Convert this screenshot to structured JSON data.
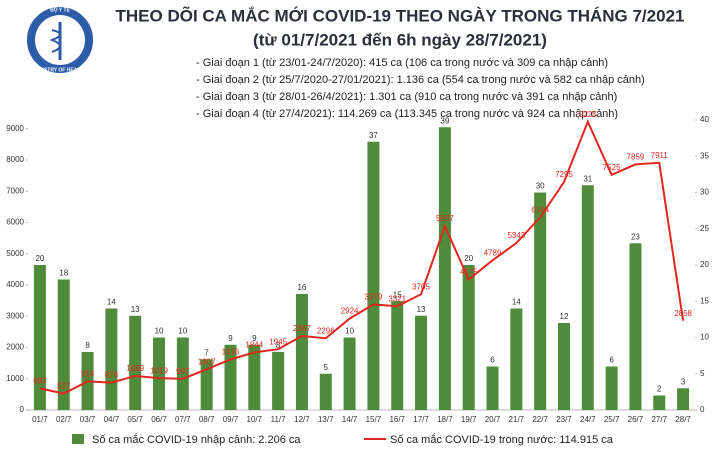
{
  "logo": {
    "top": "BỘ Y TẾ",
    "bottom": "MINISTRY OF HEALTH"
  },
  "chart_data": {
    "type": "combo",
    "title": "THEO DÕI CA MẮC MỚI COVID-19 THEO NGÀY TRONG THÁNG 7/2021",
    "subtitle": "(từ 01/7/2021 đến 6h ngày 28/7/2021)",
    "annotations": [
      "- Giai đoạn 1 (từ 23/01-24/7/2020): 415 ca (106 ca trong nước và 309 ca nhập cảnh)",
      "- Giai đoạn 2 (từ 25/7/2020-27/01/2021): 1.136 ca (554 ca trong nước và 582 ca nhập cảnh)",
      "- Giai đoạn 3 (từ 28/01-26/4/2021): 1.301 ca (910 ca trong nước và 391 ca nhập cảnh)",
      "- Giai đoạn 4 (từ 27/4/2021): 114.269 ca (113.345 ca trong nước và 924 ca nhập cảnh)"
    ],
    "categories": [
      "01/7",
      "02/7",
      "03/7",
      "04/7",
      "05/7",
      "06/7",
      "07/7",
      "08/7",
      "09/7",
      "10/7",
      "11/7",
      "12/7",
      "13/7",
      "14/7",
      "15/7",
      "16/7",
      "17/7",
      "18/7",
      "19/7",
      "20/7",
      "21/7",
      "22/7",
      "23/7",
      "24/7",
      "25/7",
      "26/7",
      "27/7",
      "28/7"
    ],
    "series": [
      {
        "name": "Số ca mắc COVID-19 nhập cảnh: 2.206 ca",
        "type": "bar",
        "axis": "y2",
        "color": "#4f8b3b",
        "values": [
          20,
          18,
          8,
          14,
          13,
          10,
          10,
          7,
          9,
          9,
          8,
          16,
          5,
          10,
          37,
          15,
          13,
          39,
          20,
          6,
          14,
          30,
          12,
          31,
          6,
          23,
          2,
          3
        ]
      },
      {
        "name": "Số ca mắc COVID-19 trong nước: 114.915 ca",
        "type": "line",
        "color": "#e3261f",
        "values": [
          693,
          527,
          914,
          876,
          1089,
          1019,
          997,
          1307,
          1616,
          1844,
          1945,
          2367,
          2296,
          2924,
          3379,
          3321,
          3705,
          5887,
          4175,
          4789,
          5343,
          6164,
          7295,
          9225,
          7525,
          7859,
          7911,
          2858
        ]
      }
    ],
    "ylim": [
      0,
      9280
    ],
    "yticks": [
      0,
      1000,
      2000,
      3000,
      4000,
      5000,
      6000,
      7000,
      8000,
      9000
    ],
    "y2lim": [
      0,
      40
    ],
    "y2ticks": [
      0,
      5,
      10,
      15,
      20,
      25,
      30,
      35,
      40
    ]
  }
}
